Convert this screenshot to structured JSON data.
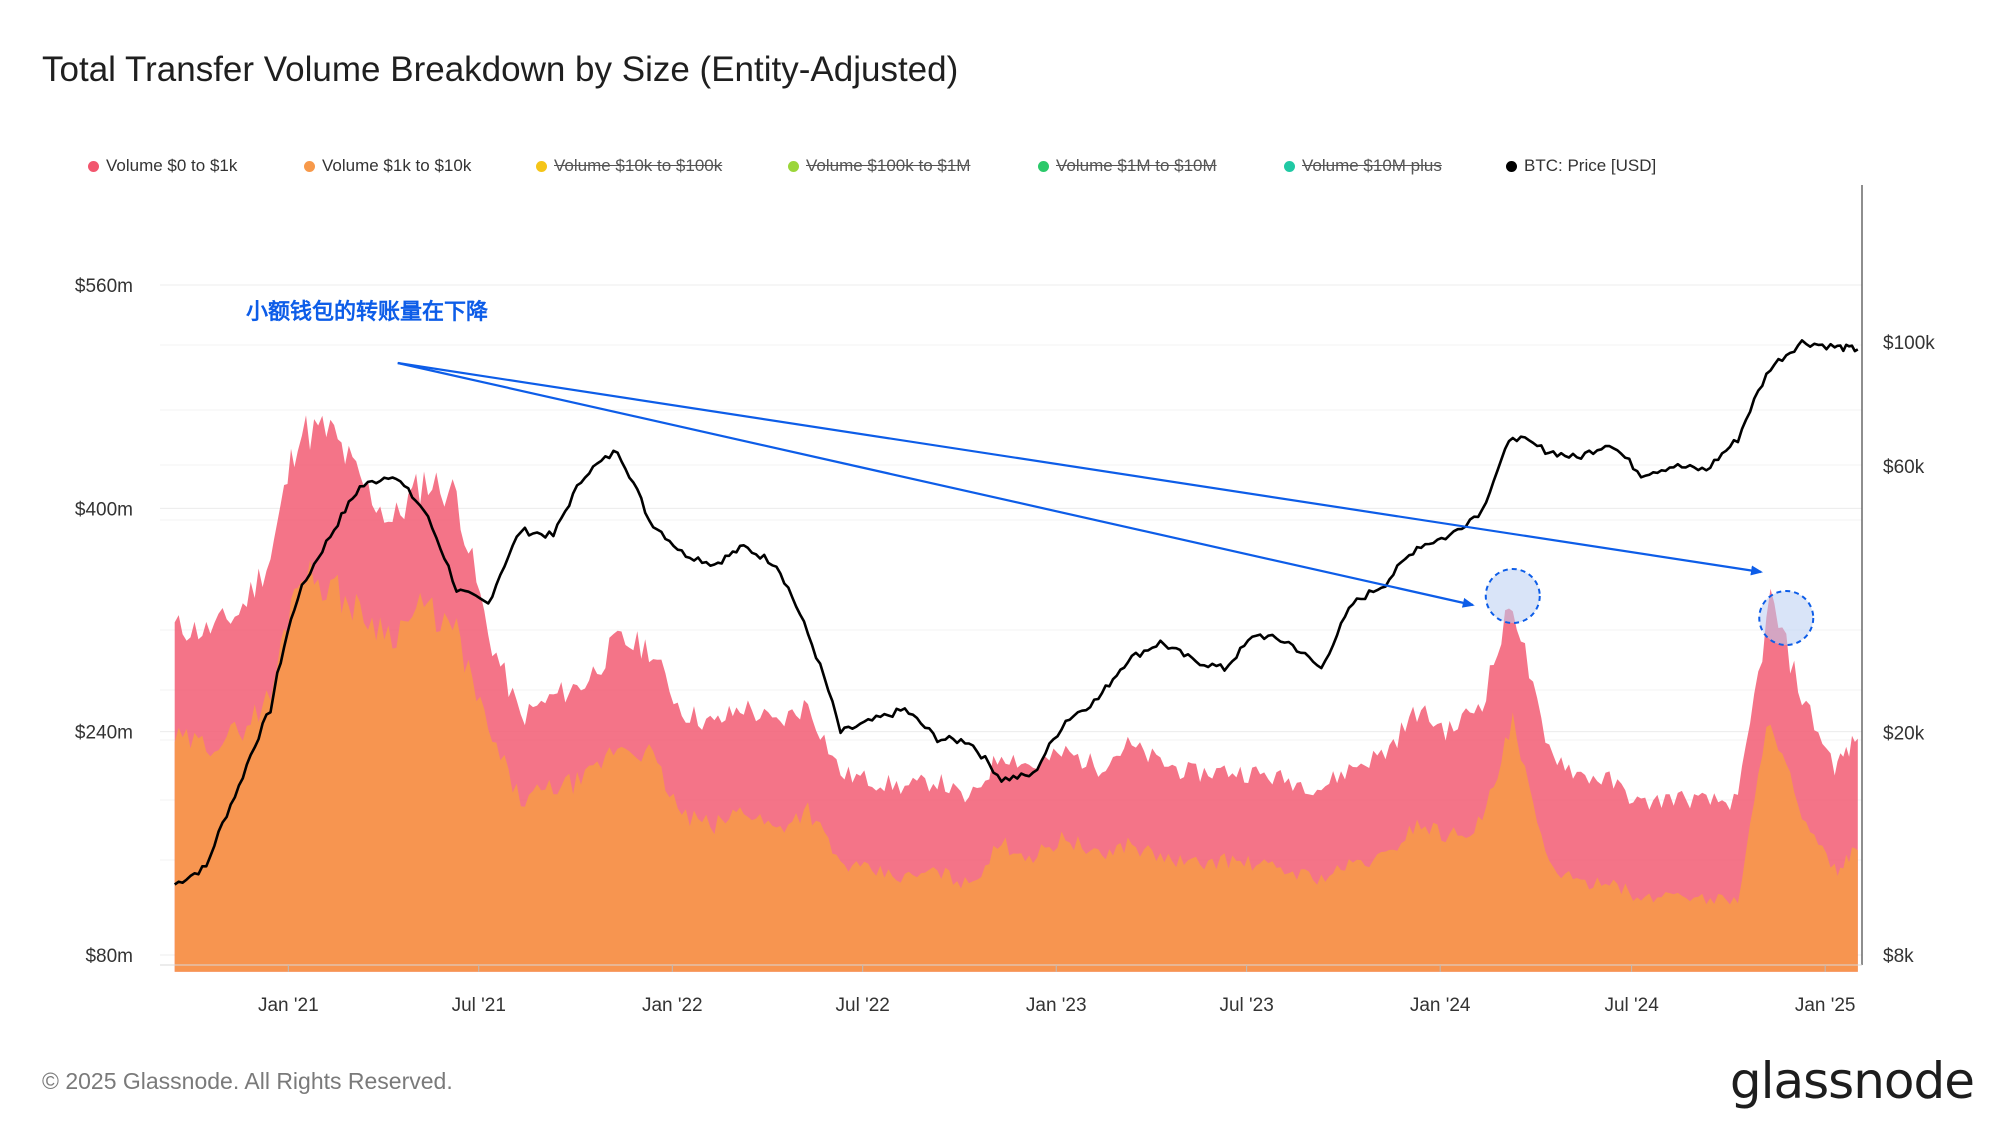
{
  "title": "Total Transfer Volume Breakdown by Size (Entity-Adjusted)",
  "annotation": "小额钱包的转账量在下降",
  "footer": "© 2025 Glassnode. All Rights Reserved.",
  "brand": "glassnode",
  "legend": [
    {
      "label": "Volume $0 to $1k",
      "color": "#f2566e",
      "active": true
    },
    {
      "label": "Volume $1k to $10k",
      "color": "#f7994a",
      "active": true
    },
    {
      "label": "Volume $10k to $100k",
      "color": "#f5c518",
      "active": false
    },
    {
      "label": "Volume $100k to $1M",
      "color": "#9bd63a",
      "active": false
    },
    {
      "label": "Volume $1M to $10M",
      "color": "#2bc96a",
      "active": false
    },
    {
      "label": "Volume $10M plus",
      "color": "#20c9a4",
      "active": false
    },
    {
      "label": "BTC: Price [USD]",
      "color": "#000000",
      "active": true
    }
  ],
  "chart_data": {
    "type": "area",
    "title": "Total Transfer Volume Breakdown by Size (Entity-Adjusted)",
    "x_ticks": [
      "Jan '21",
      "Jul '21",
      "Jan '22",
      "Jul '22",
      "Jan '23",
      "Jul '23",
      "Jan '24",
      "Jul '24",
      "Jan '25"
    ],
    "y_left_ticks": [
      "$80m",
      "$240m",
      "$400m",
      "$560m"
    ],
    "y_left_range": [
      80,
      560
    ],
    "y_right_ticks": [
      "$8k",
      "$20k",
      "$60k",
      "$100k"
    ],
    "y_right_scale": "log",
    "x_range": [
      "2020-09",
      "2025-02"
    ],
    "dates": [
      "2020-09-15",
      "2020-10-15",
      "2020-11-15",
      "2020-12-15",
      "2021-01-10",
      "2021-02-10",
      "2021-03-10",
      "2021-04-10",
      "2021-05-10",
      "2021-06-10",
      "2021-07-10",
      "2021-08-10",
      "2021-09-10",
      "2021-10-10",
      "2021-11-10",
      "2021-12-10",
      "2022-01-10",
      "2022-02-10",
      "2022-03-10",
      "2022-04-10",
      "2022-05-10",
      "2022-06-10",
      "2022-07-10",
      "2022-08-10",
      "2022-09-10",
      "2022-10-10",
      "2022-11-10",
      "2022-12-10",
      "2023-01-10",
      "2023-02-10",
      "2023-03-10",
      "2023-04-10",
      "2023-05-10",
      "2023-06-10",
      "2023-07-10",
      "2023-08-10",
      "2023-09-10",
      "2023-10-10",
      "2023-11-10",
      "2023-12-10",
      "2024-01-10",
      "2024-02-10",
      "2024-03-10",
      "2024-04-10",
      "2024-05-10",
      "2024-06-10",
      "2024-07-10",
      "2024-08-10",
      "2024-09-10",
      "2024-10-10",
      "2024-11-10",
      "2024-12-10",
      "2025-01-10",
      "2025-02-01"
    ],
    "series": [
      {
        "name": "Volume $0 to $1k",
        "unit": "$m",
        "color": "#f2566e",
        "values": [
          315,
          312,
          325,
          365,
          455,
          455,
          420,
          390,
          420,
          410,
          310,
          250,
          265,
          275,
          305,
          300,
          255,
          245,
          258,
          245,
          260,
          210,
          205,
          200,
          205,
          190,
          225,
          215,
          225,
          215,
          230,
          218,
          210,
          212,
          210,
          205,
          200,
          215,
          225,
          255,
          240,
          262,
          335,
          230,
          210,
          205,
          188,
          193,
          190,
          190,
          335,
          265,
          215,
          235
        ]
      },
      {
        "name": "Volume $1k to $10k",
        "unit": "$m",
        "color": "#f7994a",
        "values": [
          235,
          230,
          240,
          265,
          355,
          345,
          325,
          310,
          330,
          310,
          240,
          190,
          200,
          205,
          230,
          225,
          180,
          172,
          185,
          170,
          185,
          145,
          140,
          135,
          140,
          130,
          160,
          150,
          165,
          150,
          160,
          150,
          145,
          148,
          145,
          140,
          135,
          145,
          150,
          175,
          165,
          175,
          245,
          150,
          130,
          135,
          118,
          125,
          120,
          120,
          255,
          175,
          140,
          155
        ]
      },
      {
        "name": "BTC: Price [USD]",
        "unit": "$k",
        "color": "#000000",
        "values": [
          10.7,
          11.5,
          16,
          22,
          35,
          45,
          55,
          58,
          50,
          36,
          34,
          46,
          45,
          58,
          64,
          48,
          42,
          40,
          43,
          40,
          30,
          20,
          21,
          22,
          19.5,
          19.3,
          16.5,
          16.8,
          21,
          23,
          27,
          29,
          27,
          26,
          30,
          29,
          26,
          34,
          37,
          43,
          45,
          50,
          68,
          64,
          62,
          66,
          58,
          60,
          59,
          67,
          90,
          100,
          98,
          97
        ]
      }
    ],
    "annotations": [
      {
        "type": "arrow",
        "from": "2021-04-15",
        "to": "2024-02-01"
      },
      {
        "type": "arrow",
        "from": "2021-04-15",
        "to": "2024-11-01"
      },
      {
        "type": "circle",
        "at": "2024-03-10"
      },
      {
        "type": "circle",
        "at": "2024-11-25"
      }
    ]
  }
}
